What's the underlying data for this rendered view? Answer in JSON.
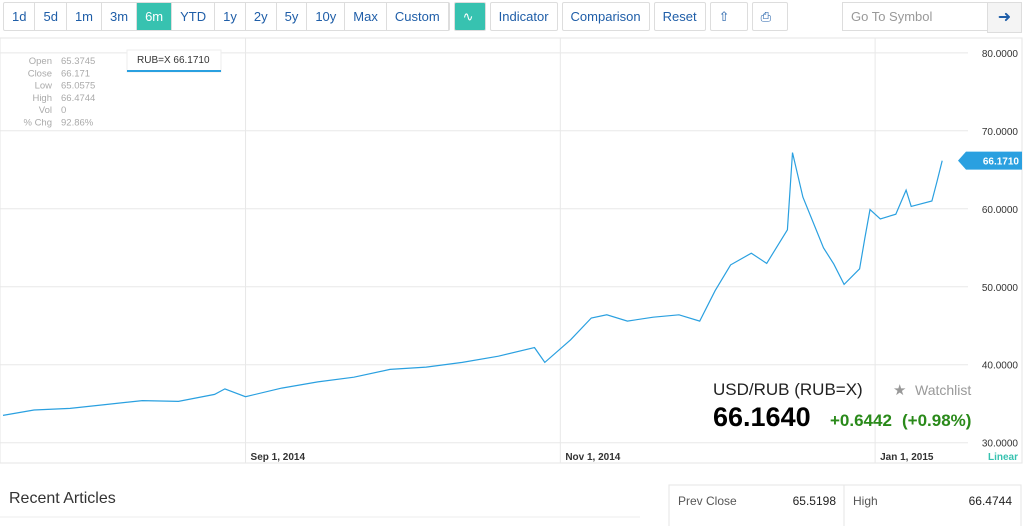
{
  "toolbar": {
    "ranges": [
      "1d",
      "5d",
      "1m",
      "3m",
      "6m",
      "YTD",
      "1y",
      "2y",
      "5y",
      "10y",
      "Max",
      "Custom"
    ],
    "active": "6m",
    "indicator": "Indicator",
    "comparison": "Comparison",
    "reset": "Reset",
    "search_placeholder": "Go To Symbol"
  },
  "ohlc": [
    [
      "Open",
      "65.3745"
    ],
    [
      "Close",
      "66.171"
    ],
    [
      "Low",
      "65.0575"
    ],
    [
      "High",
      "66.4744"
    ],
    [
      "Vol",
      "0"
    ],
    [
      "% Chg",
      "92.86%"
    ]
  ],
  "legend_tag": "RUB=X 66.1710",
  "quote": {
    "name": "USD/RUB (RUB=X)",
    "watchlist": "Watchlist",
    "price": "66.1640",
    "change": "+0.6442",
    "change_pct": "(+0.98%)"
  },
  "scale_mode": "Linear",
  "chart_data": {
    "type": "line",
    "color": "#2aa0e0",
    "price_tag": "66.1710",
    "grid": true,
    "xlim": [
      "2014-07-16",
      "2015-01-19"
    ],
    "xticks": [
      {
        "value": "2014-09-01",
        "label": "Sep 1, 2014"
      },
      {
        "value": "2014-11-01",
        "label": "Nov 1, 2014"
      },
      {
        "value": "2015-01-01",
        "label": "Jan 1, 2015"
      }
    ],
    "ylim": [
      27.4,
      81.9
    ],
    "yticks": [
      {
        "value": 30,
        "label": "30.0000"
      },
      {
        "value": 40,
        "label": "40.0000"
      },
      {
        "value": 50,
        "label": "50.0000"
      },
      {
        "value": 60,
        "label": "60.0000"
      },
      {
        "value": 70,
        "label": "70.0000"
      },
      {
        "value": 80,
        "label": "80.0000"
      }
    ],
    "series": [
      {
        "name": "RUB=X",
        "color": "#2aa0e0",
        "x": [
          "2014-07-16",
          "2014-07-22",
          "2014-07-29",
          "2014-08-05",
          "2014-08-12",
          "2014-08-19",
          "2014-08-26",
          "2014-08-28",
          "2014-09-01",
          "2014-09-08",
          "2014-09-15",
          "2014-09-22",
          "2014-09-29",
          "2014-10-06",
          "2014-10-13",
          "2014-10-20",
          "2014-10-27",
          "2014-10-29",
          "2014-11-03",
          "2014-11-07",
          "2014-11-10",
          "2014-11-14",
          "2014-11-19",
          "2014-11-24",
          "2014-11-28",
          "2014-12-01",
          "2014-12-04",
          "2014-12-08",
          "2014-12-11",
          "2014-12-15",
          "2014-12-16",
          "2014-12-18",
          "2014-12-22",
          "2014-12-24",
          "2014-12-26",
          "2014-12-29",
          "2014-12-30",
          "2014-12-31",
          "2015-01-02",
          "2015-01-05",
          "2015-01-07",
          "2015-01-08",
          "2015-01-12",
          "2015-01-13",
          "2015-01-14"
        ],
        "values": [
          33.5,
          34.2,
          34.4,
          34.9,
          35.4,
          35.3,
          36.2,
          36.9,
          35.9,
          37.0,
          37.8,
          38.4,
          39.4,
          39.7,
          40.3,
          41.1,
          42.2,
          40.3,
          43.2,
          46.0,
          46.4,
          45.6,
          46.1,
          46.4,
          45.6,
          49.5,
          52.8,
          54.3,
          53.0,
          57.3,
          67.2,
          61.5,
          55.0,
          52.9,
          50.3,
          52.3,
          56.2,
          59.9,
          58.7,
          59.3,
          62.4,
          60.3,
          61.0,
          63.5,
          66.171
        ]
      }
    ]
  },
  "bottom": {
    "articles_title": "Recent Articles",
    "stats": [
      [
        "Prev Close",
        "65.5198"
      ],
      [
        "High",
        "66.4744"
      ]
    ]
  }
}
